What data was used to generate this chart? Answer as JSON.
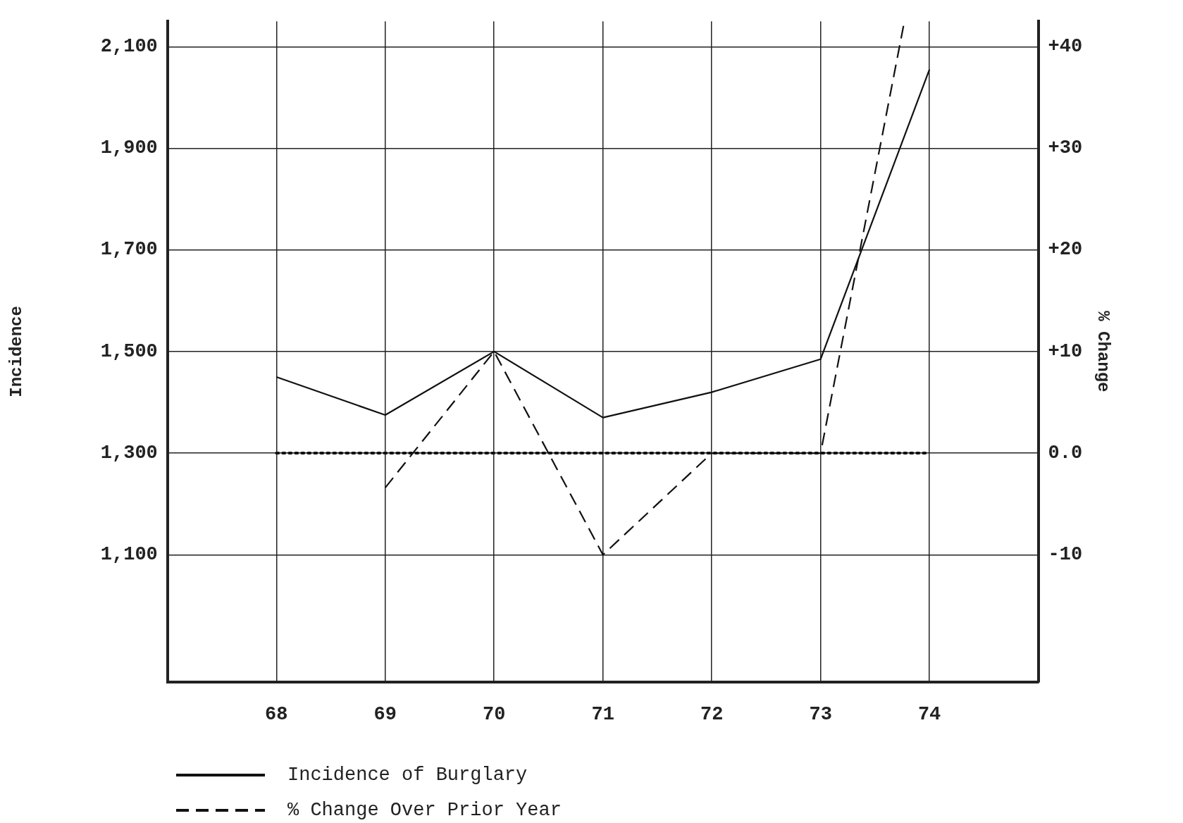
{
  "chart_data": {
    "type": "line",
    "ylabel": "Incidence",
    "y2label": "% Change",
    "x": [
      68,
      69,
      70,
      71,
      72,
      73,
      74
    ],
    "xlim": [
      67,
      75
    ],
    "xticks": [
      68,
      69,
      70,
      71,
      72,
      73,
      74
    ],
    "ylim": [
      850,
      2150
    ],
    "yticks": [
      {
        "value": 1100,
        "label": "1,100"
      },
      {
        "value": 1300,
        "label": "1,300"
      },
      {
        "value": 1500,
        "label": "1,500"
      },
      {
        "value": 1700,
        "label": "1,700"
      },
      {
        "value": 1900,
        "label": "1,900"
      },
      {
        "value": 2100,
        "label": "2,100"
      }
    ],
    "y2lim": [
      -22.5,
      42.5
    ],
    "y2ticks": [
      {
        "value": -10,
        "label": "-10"
      },
      {
        "value": 0,
        "label": "0.0"
      },
      {
        "value": 10,
        "label": "+10"
      },
      {
        "value": 20,
        "label": "+20"
      },
      {
        "value": 30,
        "label": "+30"
      },
      {
        "value": 40,
        "label": "+40"
      }
    ],
    "series": [
      {
        "name": "Incidence of Burglary",
        "color": "#111111",
        "line_style": "solid",
        "values": [
          1450,
          1375,
          1500,
          1370,
          1420,
          1485,
          2055
        ]
      },
      {
        "name": "% Change Over Prior Year",
        "color": "#111111",
        "line_style": "dashed",
        "axis": "y2",
        "x": [
          69,
          70,
          71,
          72,
          73,
          73.77
        ],
        "values": [
          -3.4,
          10,
          -10,
          0,
          0,
          42.5
        ]
      }
    ],
    "ref_lines": [
      {
        "axis": "y2",
        "value": 0,
        "line_style": "dotted",
        "color": "#111111"
      }
    ],
    "grid": true,
    "legend": "bottom",
    "marker": "none"
  }
}
